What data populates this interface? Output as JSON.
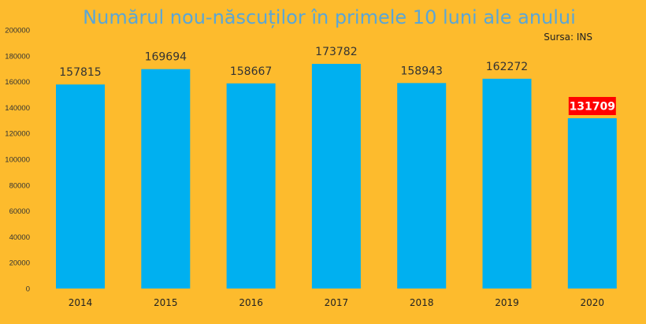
{
  "colors": {
    "background": "#FDBB2D",
    "bar": "#00B0F0",
    "title": "#5AA6D6",
    "highlight_label_bg": "#FF0000",
    "highlight_label_text": "#FFFFFF",
    "text": "#222222"
  },
  "chart_data": {
    "type": "bar",
    "title": "Numărul nou-născuților în primele 10 luni ale anului",
    "source": "Sursa: INS",
    "xlabel": "",
    "ylabel": "",
    "categories": [
      "2014",
      "2015",
      "2016",
      "2017",
      "2018",
      "2019",
      "2020"
    ],
    "series": [
      {
        "values": [
          157815,
          169694,
          158667,
          173782,
          158943,
          162272,
          131709
        ]
      }
    ],
    "data_labels": [
      "157815",
      "169694",
      "158667",
      "173782",
      "158943",
      "162272",
      "131709"
    ],
    "highlight_index": 6,
    "ylim": [
      0,
      200000
    ],
    "yticks": [
      0,
      20000,
      40000,
      60000,
      80000,
      100000,
      120000,
      140000,
      160000,
      180000,
      200000
    ],
    "ytick_labels": [
      "0",
      "20000",
      "40000",
      "60000",
      "80000",
      "100000",
      "120000",
      "140000",
      "160000",
      "180000",
      "200000"
    ],
    "grid": false,
    "legend": "none"
  }
}
